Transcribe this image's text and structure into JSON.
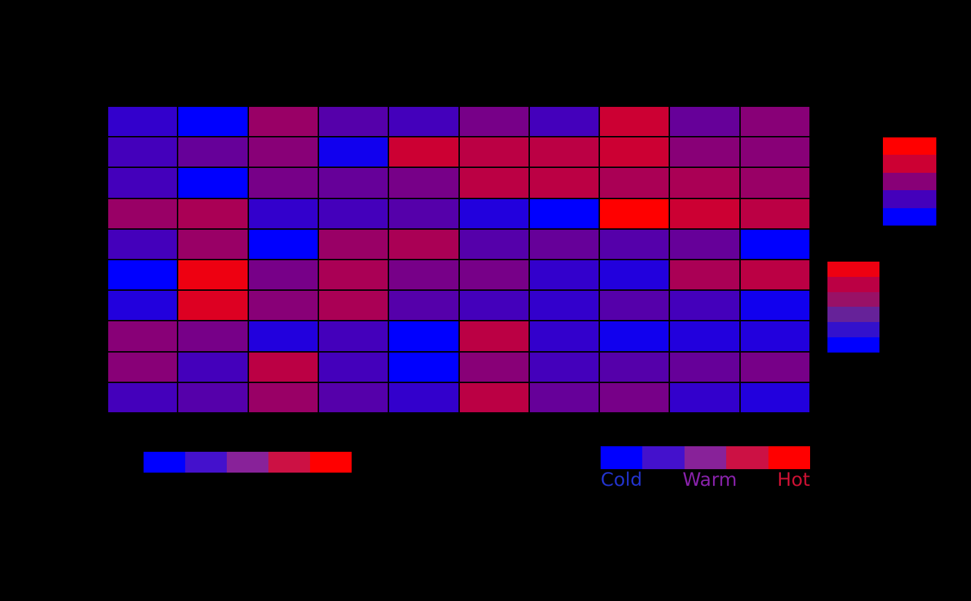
{
  "chart_data": {
    "type": "heatmap",
    "rows": 10,
    "cols": 10,
    "colormap_name": "blue-red",
    "background": "#000000",
    "grid_colors": [
      [
        "#3300CC",
        "#0000FF",
        "#990066",
        "#5500AA",
        "#4400BB",
        "#770088",
        "#4400BB",
        "#CC0033",
        "#660099",
        "#880077"
      ],
      [
        "#4400BB",
        "#660099",
        "#880077",
        "#1100EE",
        "#CC0033",
        "#BB0044",
        "#BB0044",
        "#CC0033",
        "#880077",
        "#880077"
      ],
      [
        "#4400BB",
        "#0000FF",
        "#770088",
        "#660099",
        "#770088",
        "#BB0044",
        "#BB0044",
        "#AA0055",
        "#AA0055",
        "#990066"
      ],
      [
        "#990066",
        "#AA0055",
        "#3300CC",
        "#4400BB",
        "#5500AA",
        "#2200DD",
        "#0000FF",
        "#FF0000",
        "#CC0033",
        "#BB0044"
      ],
      [
        "#4400BB",
        "#990066",
        "#0000FF",
        "#990066",
        "#AA0055",
        "#5500AA",
        "#660099",
        "#5500AA",
        "#660099",
        "#0000FF"
      ],
      [
        "#0000FF",
        "#EE0011",
        "#770088",
        "#AA0055",
        "#770088",
        "#770088",
        "#3300CC",
        "#2200DD",
        "#AA0055",
        "#BB0044"
      ],
      [
        "#2200DD",
        "#DD0022",
        "#880077",
        "#AA0055",
        "#5500AA",
        "#4400BB",
        "#3300CC",
        "#5500AA",
        "#4400BB",
        "#1100EE"
      ],
      [
        "#880077",
        "#770088",
        "#2200DD",
        "#4400BB",
        "#0000FF",
        "#BB0044",
        "#3300CC",
        "#1100EE",
        "#2200DD",
        "#2200DD"
      ],
      [
        "#880077",
        "#4400BB",
        "#BB0044",
        "#4400BB",
        "#0000FF",
        "#880077",
        "#4400BB",
        "#5500AA",
        "#660099",
        "#770088"
      ],
      [
        "#4400BB",
        "#5500AA",
        "#990066",
        "#5500AA",
        "#3300CC",
        "#BB0044",
        "#660099",
        "#770088",
        "#3300CC",
        "#2200DD"
      ]
    ],
    "legends": {
      "right_top": {
        "orientation": "vertical",
        "colors": [
          "#FF0000",
          "#CC0033",
          "#880077",
          "#4400BB",
          "#0000FF"
        ]
      },
      "right_mid": {
        "orientation": "vertical",
        "colors": [
          "#EE0011",
          "#BB0044",
          "#991166",
          "#662299",
          "#3311CC",
          "#0000FF"
        ]
      },
      "bottom_left": {
        "orientation": "horizontal",
        "colors": [
          "#0000FF",
          "#4411CC",
          "#882299",
          "#CC1144",
          "#FF0000"
        ]
      },
      "bottom_right": {
        "orientation": "horizontal",
        "colors": [
          "#0000FF",
          "#4411CC",
          "#882299",
          "#CC1144",
          "#FF0000"
        ],
        "labels": [
          {
            "text": "Cold",
            "color": "#2233CC"
          },
          {
            "text": "Warm",
            "color": "#8822AA"
          },
          {
            "text": "Hot",
            "color": "#CC1133"
          }
        ]
      }
    }
  }
}
